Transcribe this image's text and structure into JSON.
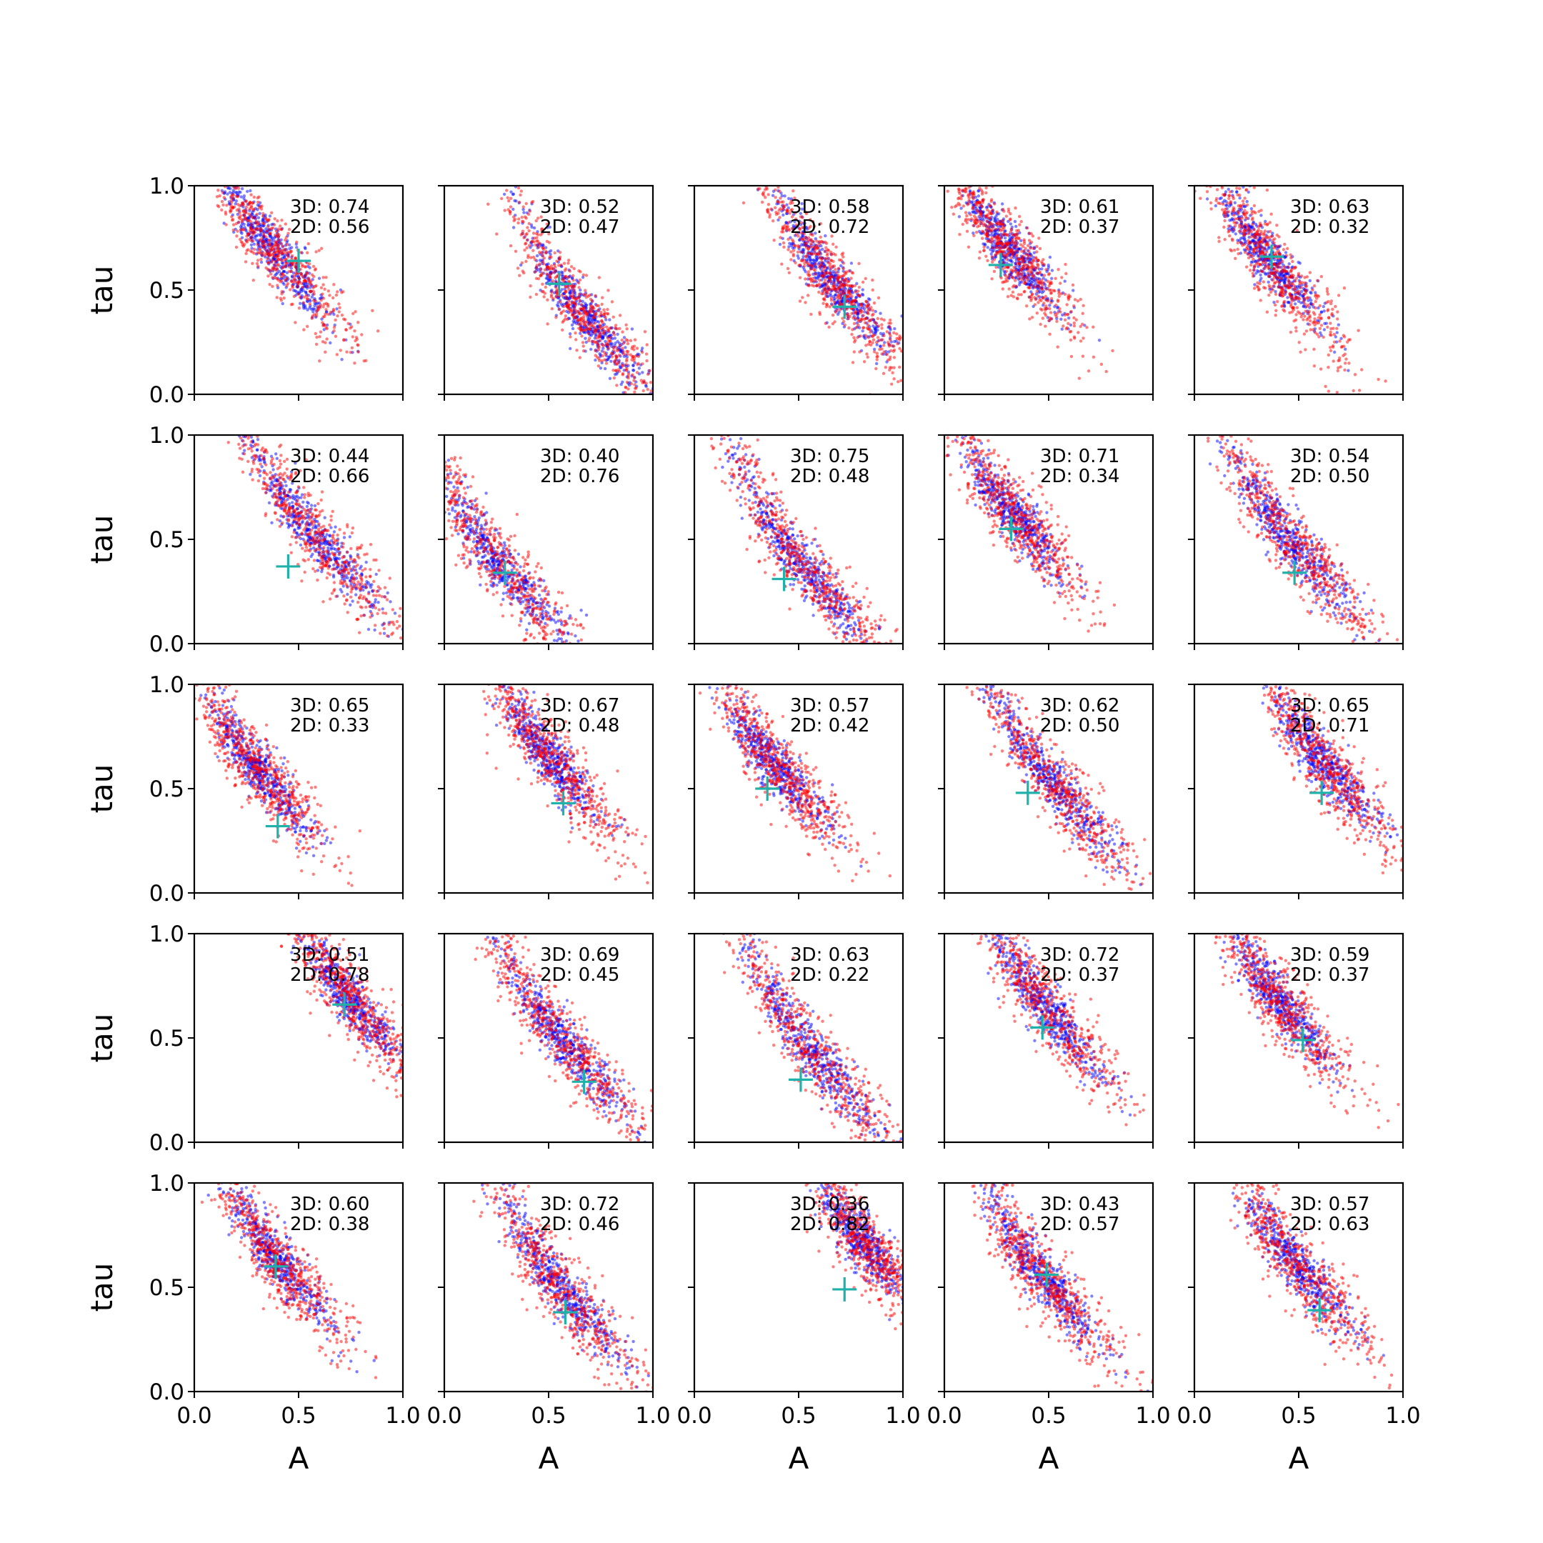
{
  "chart_data": {
    "type": "scatter",
    "grid": "5x5 subplots",
    "xlabel": "A",
    "ylabel": "tau",
    "xlim": [
      0,
      1
    ],
    "ylim": [
      0,
      1
    ],
    "x_ticks": [
      "0.0",
      "0.5",
      "1.0"
    ],
    "y_ticks": [
      "0.0",
      "0.5",
      "1.0"
    ],
    "grid_lines": false,
    "legend": "none",
    "series_colors": {
      "3d_samples": "#0000ff",
      "2d_samples": "#ff0000",
      "true_value_marker": "#20b2aa"
    },
    "marker": {
      "true_value": "+"
    },
    "panels": [
      {
        "annot_3d": "3D: 0.74",
        "annot_2d": "2D: 0.56",
        "true_point": [
          0.5,
          0.64
        ],
        "center": [
          0.37,
          0.7
        ],
        "spread": 0.16
      },
      {
        "annot_3d": "3D: 0.52",
        "annot_2d": "2D: 0.47",
        "true_point": [
          0.55,
          0.53
        ],
        "center": [
          0.65,
          0.4
        ],
        "spread": 0.18
      },
      {
        "annot_3d": "3D: 0.58",
        "annot_2d": "2D: 0.72",
        "true_point": [
          0.72,
          0.42
        ],
        "center": [
          0.65,
          0.55
        ],
        "spread": 0.16
      },
      {
        "annot_3d": "3D: 0.61",
        "annot_2d": "2D: 0.37",
        "true_point": [
          0.27,
          0.62
        ],
        "center": [
          0.3,
          0.7
        ],
        "spread": 0.14
      },
      {
        "annot_3d": "3D: 0.63",
        "annot_2d": "2D: 0.32",
        "true_point": [
          0.37,
          0.66
        ],
        "center": [
          0.35,
          0.65
        ],
        "spread": 0.15
      },
      {
        "annot_3d": "3D: 0.44",
        "annot_2d": "2D: 0.66",
        "true_point": [
          0.45,
          0.37
        ],
        "center": [
          0.55,
          0.55
        ],
        "spread": 0.2
      },
      {
        "annot_3d": "3D: 0.40",
        "annot_2d": "2D: 0.76",
        "true_point": [
          0.29,
          0.34
        ],
        "center": [
          0.25,
          0.4
        ],
        "spread": 0.2
      },
      {
        "annot_3d": "3D: 0.75",
        "annot_2d": "2D: 0.48",
        "true_point": [
          0.43,
          0.31
        ],
        "center": [
          0.5,
          0.4
        ],
        "spread": 0.2
      },
      {
        "annot_3d": "3D: 0.71",
        "annot_2d": "2D: 0.34",
        "true_point": [
          0.32,
          0.55
        ],
        "center": [
          0.33,
          0.62
        ],
        "spread": 0.14
      },
      {
        "annot_3d": "3D: 0.54",
        "annot_2d": "2D: 0.50",
        "true_point": [
          0.48,
          0.34
        ],
        "center": [
          0.45,
          0.5
        ],
        "spread": 0.18
      },
      {
        "annot_3d": "3D: 0.65",
        "annot_2d": "2D: 0.33",
        "true_point": [
          0.4,
          0.32
        ],
        "center": [
          0.3,
          0.6
        ],
        "spread": 0.14
      },
      {
        "annot_3d": "3D: 0.67",
        "annot_2d": "2D: 0.48",
        "true_point": [
          0.57,
          0.43
        ],
        "center": [
          0.5,
          0.65
        ],
        "spread": 0.14
      },
      {
        "annot_3d": "3D: 0.57",
        "annot_2d": "2D: 0.42",
        "true_point": [
          0.35,
          0.5
        ],
        "center": [
          0.38,
          0.62
        ],
        "spread": 0.15
      },
      {
        "annot_3d": "3D: 0.62",
        "annot_2d": "2D: 0.50",
        "true_point": [
          0.4,
          0.48
        ],
        "center": [
          0.5,
          0.55
        ],
        "spread": 0.18
      },
      {
        "annot_3d": "3D: 0.65",
        "annot_2d": "2D: 0.71",
        "true_point": [
          0.61,
          0.48
        ],
        "center": [
          0.62,
          0.62
        ],
        "spread": 0.15
      },
      {
        "annot_3d": "3D: 0.51",
        "annot_2d": "2D: 0.78",
        "true_point": [
          0.72,
          0.66
        ],
        "center": [
          0.75,
          0.68
        ],
        "spread": 0.14
      },
      {
        "annot_3d": "3D: 0.69",
        "annot_2d": "2D: 0.45",
        "true_point": [
          0.67,
          0.29
        ],
        "center": [
          0.55,
          0.5
        ],
        "spread": 0.18
      },
      {
        "annot_3d": "3D: 0.63",
        "annot_2d": "2D: 0.22",
        "true_point": [
          0.51,
          0.3
        ],
        "center": [
          0.55,
          0.45
        ],
        "spread": 0.2
      },
      {
        "annot_3d": "3D: 0.72",
        "annot_2d": "2D: 0.37",
        "true_point": [
          0.47,
          0.55
        ],
        "center": [
          0.48,
          0.65
        ],
        "spread": 0.16
      },
      {
        "annot_3d": "3D: 0.59",
        "annot_2d": "2D: 0.37",
        "true_point": [
          0.52,
          0.49
        ],
        "center": [
          0.4,
          0.68
        ],
        "spread": 0.15
      },
      {
        "annot_3d": "3D: 0.60",
        "annot_2d": "2D: 0.38",
        "true_point": [
          0.39,
          0.6
        ],
        "center": [
          0.4,
          0.62
        ],
        "spread": 0.15
      },
      {
        "annot_3d": "3D: 0.72",
        "annot_2d": "2D: 0.46",
        "true_point": [
          0.58,
          0.38
        ],
        "center": [
          0.55,
          0.5
        ],
        "spread": 0.17
      },
      {
        "annot_3d": "3D: 0.36",
        "annot_2d": "2D: 0.82",
        "true_point": [
          0.72,
          0.49
        ],
        "center": [
          0.8,
          0.72
        ],
        "spread": 0.12
      },
      {
        "annot_3d": "3D: 0.43",
        "annot_2d": "2D: 0.57",
        "true_point": [
          0.49,
          0.56
        ],
        "center": [
          0.47,
          0.55
        ],
        "spread": 0.16
      },
      {
        "annot_3d": "3D: 0.57",
        "annot_2d": "2D: 0.63",
        "true_point": [
          0.6,
          0.39
        ],
        "center": [
          0.48,
          0.62
        ],
        "spread": 0.16
      }
    ]
  }
}
